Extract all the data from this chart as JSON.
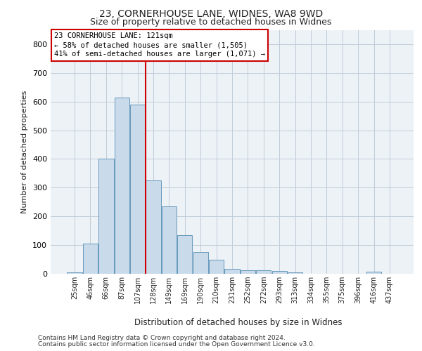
{
  "title1": "23, CORNERHOUSE LANE, WIDNES, WA8 9WD",
  "title2": "Size of property relative to detached houses in Widnes",
  "xlabel": "Distribution of detached houses by size in Widnes",
  "ylabel": "Number of detached properties",
  "footnote1": "Contains HM Land Registry data © Crown copyright and database right 2024.",
  "footnote2": "Contains public sector information licensed under the Open Government Licence v3.0.",
  "categories": [
    "25sqm",
    "46sqm",
    "66sqm",
    "87sqm",
    "107sqm",
    "128sqm",
    "149sqm",
    "169sqm",
    "190sqm",
    "210sqm",
    "231sqm",
    "252sqm",
    "272sqm",
    "293sqm",
    "313sqm",
    "334sqm",
    "355sqm",
    "375sqm",
    "396sqm",
    "416sqm",
    "437sqm"
  ],
  "values": [
    5,
    105,
    400,
    615,
    590,
    325,
    235,
    135,
    77,
    50,
    18,
    13,
    13,
    10,
    5,
    0,
    0,
    0,
    0,
    7,
    0
  ],
  "bar_color": "#c9daea",
  "bar_edge_color": "#6699bb",
  "vline_color": "#cc0000",
  "vline_pos": 4.5,
  "ylim": [
    0,
    850
  ],
  "yticks": [
    0,
    100,
    200,
    300,
    400,
    500,
    600,
    700,
    800
  ],
  "annotation_line1": "23 CORNERHOUSE LANE: 121sqm",
  "annotation_line2": "← 58% of detached houses are smaller (1,505)",
  "annotation_line3": "41% of semi-detached houses are larger (1,071) →",
  "annotation_box_fc": "#ffffff",
  "annotation_box_ec": "#cc0000",
  "bg_color": "#edf2f7",
  "grid_color": "#c0ccd8",
  "title1_fontsize": 10,
  "title2_fontsize": 9,
  "ylabel_fontsize": 8,
  "xlabel_fontsize": 8.5,
  "tick_fontsize": 7,
  "footnote_fontsize": 6.5,
  "annotation_fontsize": 7.5
}
